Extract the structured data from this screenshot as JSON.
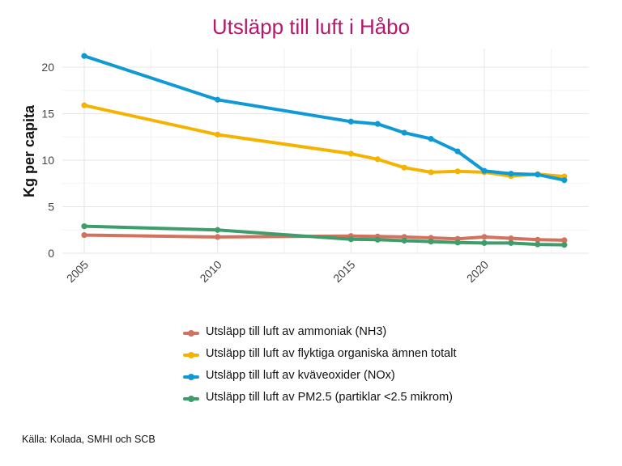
{
  "chart_data": {
    "type": "line",
    "title": "Utsläpp till luft i Håbo",
    "xlabel": "",
    "ylabel": "Kg per capita",
    "xlim": [
      2005,
      2023
    ],
    "ylim": [
      0,
      22
    ],
    "x_ticks": [
      "2005",
      "2010",
      "2015",
      "2020"
    ],
    "y_ticks": [
      "0",
      "5",
      "10",
      "15",
      "20"
    ],
    "grid": true,
    "legend_position": "bottom",
    "series": [
      {
        "name": "Utsläpp till luft av ammoniak (NH3)",
        "color": "#d4715e",
        "points": [
          [
            2005,
            1.95
          ],
          [
            2010,
            1.75
          ],
          [
            2015,
            1.85
          ],
          [
            2016,
            1.8
          ],
          [
            2017,
            1.75
          ],
          [
            2018,
            1.65
          ],
          [
            2019,
            1.55
          ],
          [
            2020,
            1.75
          ],
          [
            2021,
            1.6
          ],
          [
            2022,
            1.45
          ],
          [
            2023,
            1.4
          ]
        ]
      },
      {
        "name": "Utsläpp till luft av flyktiga organiska ämnen totalt",
        "color": "#f5b301",
        "points": [
          [
            2005,
            15.9
          ],
          [
            2010,
            12.75
          ],
          [
            2015,
            10.7
          ],
          [
            2016,
            10.1
          ],
          [
            2017,
            9.2
          ],
          [
            2018,
            8.7
          ],
          [
            2019,
            8.8
          ],
          [
            2020,
            8.7
          ],
          [
            2021,
            8.3
          ],
          [
            2022,
            8.5
          ],
          [
            2023,
            8.25
          ]
        ]
      },
      {
        "name": "Utsläpp till luft av kväveoxider (NOx)",
        "color": "#0f9ad6",
        "points": [
          [
            2005,
            21.2
          ],
          [
            2010,
            16.5
          ],
          [
            2015,
            14.15
          ],
          [
            2016,
            13.9
          ],
          [
            2017,
            12.95
          ],
          [
            2018,
            12.3
          ],
          [
            2019,
            10.95
          ],
          [
            2020,
            8.85
          ],
          [
            2021,
            8.55
          ],
          [
            2022,
            8.45
          ],
          [
            2023,
            7.85
          ]
        ]
      },
      {
        "name": "Utsläpp till luft av PM2.5 (partiklar <2.5 mikrom)",
        "color": "#3f9c6b",
        "points": [
          [
            2005,
            2.9
          ],
          [
            2010,
            2.5
          ],
          [
            2015,
            1.5
          ],
          [
            2016,
            1.45
          ],
          [
            2017,
            1.35
          ],
          [
            2018,
            1.25
          ],
          [
            2019,
            1.15
          ],
          [
            2020,
            1.1
          ],
          [
            2021,
            1.1
          ],
          [
            2022,
            0.95
          ],
          [
            2023,
            0.9
          ]
        ]
      }
    ]
  },
  "legend": {
    "items": [
      {
        "label": "Utsläpp till luft av ammoniak (NH3)",
        "color": "#d4715e"
      },
      {
        "label": "Utsläpp till luft av flyktiga organiska ämnen totalt",
        "color": "#f5b301"
      },
      {
        "label": "Utsläpp till luft av kväveoxider (NOx)",
        "color": "#0f9ad6"
      },
      {
        "label": "Utsläpp till luft av PM2.5 (partiklar <2.5 mikrom)",
        "color": "#3f9c6b"
      }
    ]
  },
  "source": "Källa: Kolada, SMHI och SCB"
}
